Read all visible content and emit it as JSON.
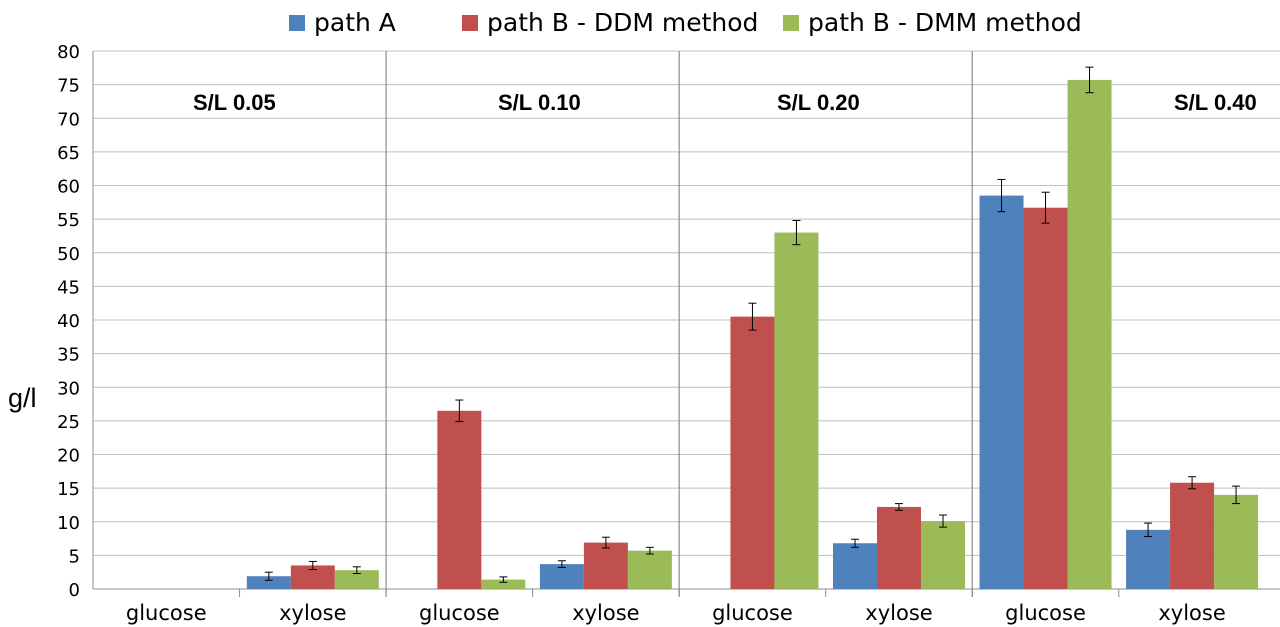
{
  "chart_data": {
    "type": "bar",
    "ylabel": "g/l",
    "xlabel": "",
    "ylim": [
      0,
      80
    ],
    "yticks": [
      0,
      5,
      10,
      15,
      20,
      25,
      30,
      35,
      40,
      45,
      50,
      55,
      60,
      65,
      70,
      75,
      80
    ],
    "grid": true,
    "legend_position": "top",
    "groups": [
      "S/L 0.05",
      "S/L 0.10",
      "S/L 0.20",
      "S/L 0.40"
    ],
    "categories": [
      "glucose",
      "xylose",
      "glucose",
      "xylose",
      "glucose",
      "xylose",
      "glucose",
      "xylose"
    ],
    "series": [
      {
        "name": "path A",
        "color": "#4f81bd",
        "values": [
          0,
          1.9,
          0,
          3.7,
          0,
          6.8,
          58.5,
          8.8
        ],
        "errors": [
          0,
          0.6,
          0,
          0.5,
          0,
          0.6,
          2.4,
          1.0
        ]
      },
      {
        "name": "path B - DDM method",
        "color": "#c0504d",
        "values": [
          0,
          3.5,
          26.5,
          6.9,
          40.5,
          12.2,
          56.7,
          15.8
        ],
        "errors": [
          0,
          0.6,
          1.6,
          0.8,
          2.0,
          0.5,
          2.3,
          0.9
        ]
      },
      {
        "name": "path B - DMM method",
        "color": "#9bbb59",
        "values": [
          0,
          2.8,
          1.4,
          5.7,
          53.0,
          10.1,
          75.7,
          14.0
        ],
        "errors": [
          0,
          0.5,
          0.4,
          0.5,
          1.8,
          0.9,
          1.9,
          1.3
        ]
      }
    ]
  }
}
